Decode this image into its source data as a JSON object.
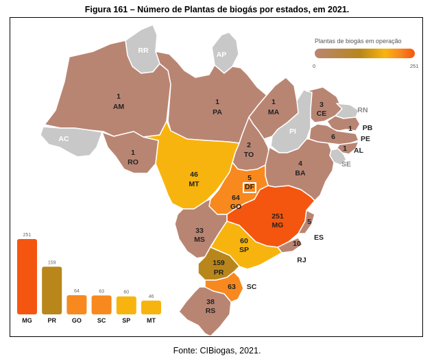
{
  "figure_title": "Figura 161 – Número de Plantas de biogás por estados, em 2021.",
  "source": "Fonte: CIBiogas, 2021.",
  "legend": {
    "title": "Plantas de biogás em operação",
    "min": "0",
    "max": "251"
  },
  "colors": {
    "zero": "#c8c8c8",
    "low": "#b98573",
    "pr": "#b8861b",
    "amber": "#f8b40e",
    "orange": "#f7891f",
    "red": "#f5560f"
  },
  "states": [
    {
      "uf": "RR",
      "count": ""
    },
    {
      "uf": "AP",
      "count": ""
    },
    {
      "uf": "AM",
      "count": "1"
    },
    {
      "uf": "PA",
      "count": "1"
    },
    {
      "uf": "MA",
      "count": "1"
    },
    {
      "uf": "CE",
      "count": "3"
    },
    {
      "uf": "RN",
      "count": ""
    },
    {
      "uf": "PB",
      "count": "1"
    },
    {
      "uf": "PE",
      "count": "6"
    },
    {
      "uf": "AL",
      "count": "1"
    },
    {
      "uf": "SE",
      "count": ""
    },
    {
      "uf": "PI",
      "count": ""
    },
    {
      "uf": "AC",
      "count": ""
    },
    {
      "uf": "RO",
      "count": "1"
    },
    {
      "uf": "TO",
      "count": "2"
    },
    {
      "uf": "BA",
      "count": "4"
    },
    {
      "uf": "MT",
      "count": "46"
    },
    {
      "uf": "DF",
      "count": "5"
    },
    {
      "uf": "GO",
      "count": "64"
    },
    {
      "uf": "MG",
      "count": "251"
    },
    {
      "uf": "ES",
      "count": "5"
    },
    {
      "uf": "RJ",
      "count": "10"
    },
    {
      "uf": "MS",
      "count": "33"
    },
    {
      "uf": "SP",
      "count": "60"
    },
    {
      "uf": "PR",
      "count": "159"
    },
    {
      "uf": "SC",
      "count": "63"
    },
    {
      "uf": "RS",
      "count": "38"
    }
  ],
  "chart_data": {
    "type": "bar",
    "categories": [
      "MG",
      "PR",
      "GO",
      "SC",
      "SP",
      "MT"
    ],
    "values": [
      251,
      159,
      64,
      63,
      60,
      46
    ],
    "colors": [
      "#f5560f",
      "#b8861b",
      "#f7891f",
      "#f7891f",
      "#f8b40e",
      "#f8b40e"
    ]
  }
}
